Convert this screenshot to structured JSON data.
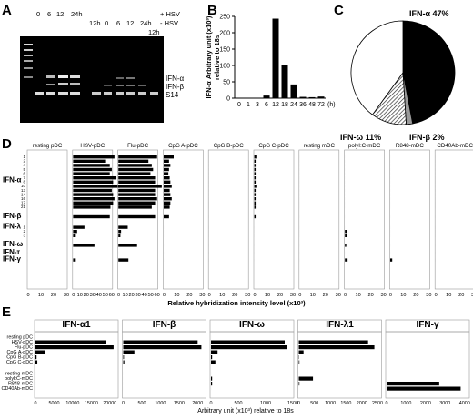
{
  "panels": {
    "A": "A",
    "B": "B",
    "C": "C",
    "D": "D",
    "E": "E"
  },
  "gel": {
    "lanes_top": [
      "0",
      "6",
      "12",
      "24h"
    ],
    "lanes_bottom_12h": "12h",
    "lanes_top_b": [
      "0",
      "6",
      "12",
      "24h"
    ],
    "lanes_bottom_12h_b": "12h",
    "cond_plus": "+ HSV",
    "cond_minus": "- HSV",
    "bands": [
      "IFN-α",
      "IFN-β",
      "S14"
    ]
  },
  "chart_data": [
    {
      "type": "bar",
      "panel": "B",
      "categories": [
        "0",
        "1",
        "3",
        "6",
        "12",
        "18",
        "24",
        "36",
        "48",
        "72"
      ],
      "values": [
        0,
        0,
        0,
        8,
        243,
        102,
        42,
        4,
        3,
        5
      ],
      "xlabel": "(h)",
      "ylabel": "IFN-α Arbitrary unit (x10³) relative to 18s",
      "ylim": [
        0,
        250
      ],
      "yticks": [
        "0",
        "50",
        "100",
        "150",
        "200",
        "250"
      ],
      "grid": false
    },
    {
      "type": "pie",
      "panel": "C",
      "slices": [
        {
          "name": "IFN-α 47%",
          "value": 47,
          "color": "#000000"
        },
        {
          "name": "IFN-β 2%",
          "value": 2,
          "color": "#9a9a9a"
        },
        {
          "name": "IFN-ω 11%",
          "value": 11,
          "color": "hatch"
        },
        {
          "name": "",
          "value": 40,
          "color": "#ffffff"
        }
      ]
    },
    {
      "type": "bar",
      "panel": "D",
      "orientation": "horizontal",
      "conditions": [
        "resting pDC",
        "HSV-pDC",
        "Flu-pDC",
        "CpG A-pDC",
        "CpG B-pDC",
        "CpG C-pDC",
        "resting mDC",
        "polyI:C-mDC",
        "R848-mDC",
        "CD40Ab-mDC"
      ],
      "row_groups": [
        {
          "name": "IFN-α",
          "rows": [
            "1",
            "2",
            "4",
            "5",
            "6",
            "7",
            "8",
            "10",
            "13",
            "14",
            "16",
            "17",
            "21"
          ]
        },
        {
          "name": "IFN-β",
          "rows": [
            ""
          ]
        },
        {
          "name": "IFN-λ",
          "rows": [
            "1",
            "2",
            "3"
          ]
        },
        {
          "name": "IFN-ω",
          "rows": [
            ""
          ]
        },
        {
          "name": "IFN-τ",
          "rows": [
            ""
          ]
        },
        {
          "name": "IFN-γ",
          "rows": [
            ""
          ]
        }
      ],
      "series": [
        {
          "name": "resting pDC",
          "values": [
            0,
            0,
            0,
            0,
            0,
            0,
            0,
            0,
            0,
            0,
            0,
            0,
            0,
            0,
            0,
            0,
            0,
            0,
            0,
            0
          ]
        },
        {
          "name": "HSV-pDC",
          "values": [
            62,
            48,
            55,
            58,
            55,
            65,
            60,
            70,
            58,
            60,
            62,
            60,
            56,
            55,
            17,
            6,
            4,
            32,
            0,
            4
          ]
        },
        {
          "name": "Flu-pDC",
          "values": [
            58,
            45,
            50,
            52,
            48,
            55,
            55,
            65,
            55,
            55,
            58,
            55,
            50,
            55,
            14,
            4,
            3,
            28,
            0,
            15
          ]
        },
        {
          "name": "CpG A-pDC",
          "values": [
            15,
            8,
            10,
            8,
            7,
            9,
            10,
            12,
            9,
            10,
            12,
            10,
            9,
            8,
            0,
            0,
            0,
            0,
            0,
            0
          ]
        },
        {
          "name": "CpG B-pDC",
          "values": [
            0,
            0,
            0,
            0,
            0,
            0,
            0,
            0,
            0,
            0,
            0,
            0,
            0,
            0,
            0,
            0,
            0,
            0,
            0,
            0
          ]
        },
        {
          "name": "CpG C-pDC",
          "values": [
            3,
            2,
            2,
            2,
            2,
            2,
            2,
            3,
            2,
            2,
            2,
            2,
            2,
            2,
            0,
            0,
            0,
            0,
            0,
            0
          ]
        },
        {
          "name": "resting mDC",
          "values": [
            0,
            0,
            0,
            0,
            0,
            0,
            0,
            0,
            0,
            0,
            0,
            0,
            0,
            0,
            0,
            0,
            0,
            0,
            0,
            0
          ]
        },
        {
          "name": "polyI:C-mDC",
          "values": [
            0,
            0,
            0,
            0,
            0,
            0,
            0,
            0,
            0,
            0,
            0,
            0,
            0,
            0,
            0,
            3,
            3,
            2,
            0,
            4
          ]
        },
        {
          "name": "R848-mDC",
          "values": [
            0,
            0,
            0,
            0,
            0,
            0,
            0,
            0,
            0,
            0,
            0,
            0,
            0,
            0,
            0,
            0,
            0,
            0,
            0,
            3
          ]
        },
        {
          "name": "CD40Ab-mDC",
          "values": [
            0,
            0,
            0,
            0,
            0,
            0,
            0,
            0,
            0,
            0,
            0,
            0,
            0,
            0,
            0,
            0,
            0,
            0,
            0,
            0
          ]
        }
      ],
      "xticks": [
        "0",
        "10",
        "20",
        "30",
        "40",
        "50",
        "60"
      ],
      "xlabel": "Relative hybridization intensity level (x10³)"
    },
    {
      "type": "bar",
      "panel": "E",
      "orientation": "horizontal",
      "categories": [
        "resting pDC",
        "HSV-pDC",
        "Flu-pDC",
        "CpG A-pDC",
        "CpG B-pDC",
        "CpG C-pDC",
        "resting mDC",
        "polyI:C-mDC",
        "R848-mDC",
        "CD40Ab-mDC"
      ],
      "panels": [
        {
          "title": "IFN-α1",
          "values": [
            0,
            19000,
            21000,
            2500,
            300,
            500,
            0,
            0,
            0,
            0
          ],
          "xmax": 22000,
          "xticks": [
            "0",
            "5000",
            "10000",
            "15000",
            "20000"
          ]
        },
        {
          "title": "IFN-β",
          "values": [
            0,
            2000,
            2100,
            300,
            20,
            30,
            0,
            0,
            0,
            0
          ],
          "xmax": 2200,
          "xticks": [
            "0",
            "500",
            "1000",
            "1500",
            "2000"
          ]
        },
        {
          "title": "IFN-ω",
          "values": [
            0,
            1350,
            1400,
            120,
            20,
            80,
            0,
            20,
            20,
            0
          ],
          "xmax": 1500,
          "xticks": [
            "0",
            "500",
            "1000",
            "1500"
          ]
        },
        {
          "title": "IFN-λ1",
          "values": [
            0,
            2200,
            2400,
            150,
            10,
            20,
            0,
            450,
            20,
            0
          ],
          "xmax": 2600,
          "xticks": [
            "0",
            "500",
            "1000",
            "1500",
            "2000",
            "2500"
          ]
        },
        {
          "title": "IFN-γ",
          "values": [
            0,
            0,
            0,
            0,
            0,
            0,
            0,
            0,
            2700,
            3800
          ],
          "xmax": 4200,
          "xticks": [
            "0",
            "1000",
            "2000",
            "3000",
            "4000"
          ]
        }
      ],
      "xlabel": "Arbitrary unit (x10³) relative to 18s"
    }
  ]
}
